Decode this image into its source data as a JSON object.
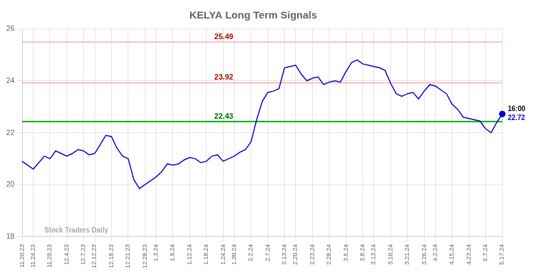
{
  "chart_data": {
    "type": "line",
    "title": "KELYA Long Term Signals",
    "categories": [
      "11.20.23",
      null,
      "11.24.23",
      null,
      null,
      "11.29.23",
      null,
      null,
      "12.4.23",
      null,
      null,
      "12.7.23",
      null,
      "12.12.23",
      null,
      null,
      "12.18.23",
      null,
      null,
      "12.21.23",
      null,
      null,
      "12.28.23",
      null,
      "1.3.24",
      null,
      null,
      "1.9.24",
      null,
      null,
      "1.12.24",
      null,
      null,
      "1.18.24",
      null,
      null,
      "1.24.24",
      null,
      "1.30.24",
      null,
      null,
      "2.2.24",
      null,
      null,
      "2.7.24",
      null,
      null,
      "2.13.24",
      null,
      "2.20.24",
      null,
      null,
      "2.23.24",
      null,
      null,
      "2.28.24",
      null,
      null,
      "3.5.24",
      null,
      null,
      "3.8.24",
      null,
      "3.13.24",
      null,
      null,
      "3.18.24",
      null,
      null,
      "3.21.24",
      null,
      null,
      "3.26.24",
      null,
      "4.2.24",
      null,
      null,
      "4.15.24",
      null,
      null,
      "4.23.24",
      null,
      null,
      "5.7.24",
      null,
      null,
      "5.17.24"
    ],
    "series": [
      {
        "name": "KELYA",
        "color": "#0000cc",
        "values": [
          20.9,
          20.75,
          20.6,
          20.85,
          21.1,
          21.0,
          21.3,
          21.2,
          21.1,
          21.2,
          21.35,
          21.3,
          21.15,
          21.2,
          21.55,
          21.9,
          21.85,
          21.4,
          21.1,
          21.0,
          20.2,
          19.85,
          20.0,
          20.15,
          20.3,
          20.5,
          20.8,
          20.75,
          20.8,
          20.95,
          21.05,
          21.0,
          20.85,
          20.9,
          21.1,
          21.15,
          20.9,
          21.0,
          21.1,
          21.25,
          21.35,
          21.65,
          22.5,
          23.2,
          23.55,
          23.6,
          23.7,
          24.5,
          24.55,
          24.6,
          24.25,
          24.0,
          24.1,
          24.15,
          23.85,
          23.95,
          24.0,
          23.95,
          24.35,
          24.7,
          24.8,
          24.65,
          24.6,
          24.55,
          24.5,
          24.4,
          23.9,
          23.5,
          23.4,
          23.5,
          23.55,
          23.3,
          23.6,
          23.85,
          23.8,
          23.65,
          23.5,
          23.1,
          22.9,
          22.6,
          22.55,
          22.5,
          22.45,
          22.15,
          22.0,
          22.4,
          22.72
        ]
      }
    ],
    "hlines": [
      {
        "value": 25.49,
        "label": "25.49",
        "color": "#ffbbbb",
        "label_color": "#aa0000"
      },
      {
        "value": 23.92,
        "label": "23.92",
        "color": "#ffbbbb",
        "label_color": "#aa0000"
      },
      {
        "value": 22.43,
        "label": "22.43",
        "color": "#00aa00",
        "label_color": "#006600"
      }
    ],
    "annotations": [
      {
        "text": "16:00",
        "x": 86,
        "y": 22.72
      },
      {
        "text": "22.72",
        "x": 86,
        "y": 22.72,
        "color": "#0000cc"
      },
      {
        "text": "Stock Traders Daily",
        "x": 3,
        "y": 18.2,
        "color": "#aaaaaa"
      }
    ],
    "ylim": [
      18,
      26
    ],
    "yticks": [
      18,
      20,
      22,
      24,
      26
    ],
    "grid": true
  }
}
